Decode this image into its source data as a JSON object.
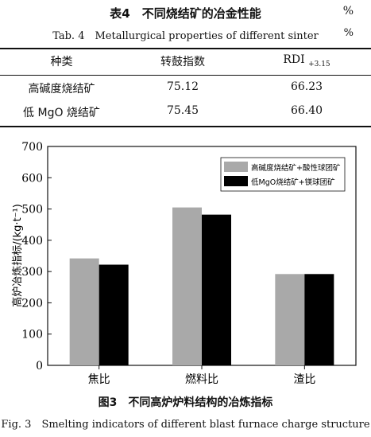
{
  "table": {
    "title_cn": "表4　不同烧结矿的冶金性能",
    "title_en": "Tab. 4　Metallurgical properties of different sinter",
    "unit": "%",
    "headers": {
      "col1": "种类",
      "col2": "转鼓指数",
      "col3_main": "RDI",
      "col3_sub": "+3.15"
    },
    "rows": [
      {
        "type": "高碱度烧结矿",
        "drum": "75.12",
        "rdi": "66.23"
      },
      {
        "type": "低 MgO 烧结矿",
        "drum": "75.45",
        "rdi": "66.40"
      }
    ]
  },
  "figure": {
    "title_cn": "图3　不同高炉炉料结构的冶炼指标",
    "title_en": "Fig. 3　Smelting indicators of different blast furnace charge structure"
  },
  "chart_data": {
    "type": "bar",
    "categories": [
      "焦比",
      "燃料比",
      "渣比"
    ],
    "series": [
      {
        "name": "高碱度烧结矿+酸性球团矿",
        "values": [
          342,
          505,
          292
        ],
        "color": "#a9a9a9"
      },
      {
        "name": "低MgO烧结矿+镁球团矿",
        "values": [
          322,
          482,
          292
        ],
        "color": "#000000"
      }
    ],
    "ylabel": "高炉冶炼指标/(kg·t⁻¹)",
    "ylim": [
      0,
      700
    ],
    "yticks": [
      0,
      100,
      200,
      300,
      400,
      500,
      600,
      700
    ],
    "legend_position": "top-right",
    "grid": false
  }
}
